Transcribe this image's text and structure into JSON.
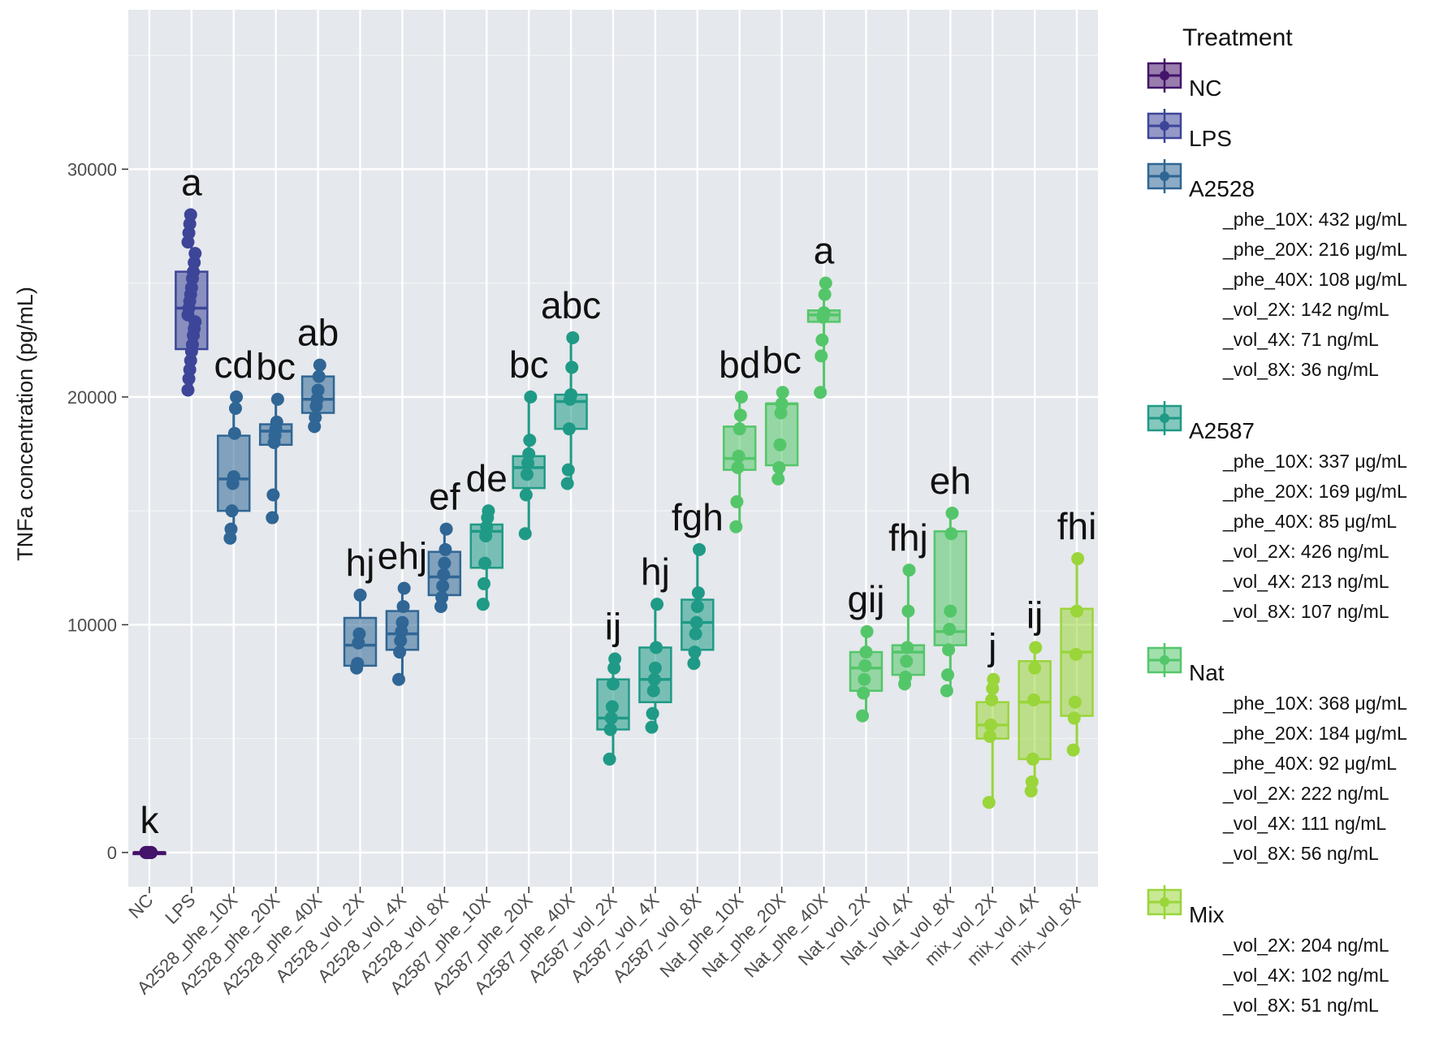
{
  "chart_data": {
    "type": "box",
    "ylabel": "TNFa concentration (pg/mL)",
    "xlabel": "",
    "ylim": [
      -1500,
      37000
    ],
    "yticks": [
      0,
      10000,
      20000,
      30000
    ],
    "categories": [
      "NC",
      "LPS",
      "A2528_phe_10X",
      "A2528_phe_20X",
      "A2528_phe_40X",
      "A2528_vol_2X",
      "A2528_vol_4X",
      "A2528_vol_8X",
      "A2587_phe_10X",
      "A2587_phe_20X",
      "A2587_phe_40X",
      "A2587_vol_2X",
      "A2587_vol_4X",
      "A2587_vol_8X",
      "Nat_phe_10X",
      "Nat_phe_20X",
      "Nat_phe_40X",
      "Nat_vol_2X",
      "Nat_vol_4X",
      "Nat_vol_8X",
      "mix_vol_2X",
      "mix_vol_4X",
      "mix_vol_8X"
    ],
    "boxes": [
      {
        "category": "NC",
        "group": "NC",
        "min": 0,
        "q1": 0,
        "median": 0,
        "q3": 0,
        "max": 0,
        "letter": "k",
        "points": [
          0,
          0,
          0,
          0,
          0,
          0,
          0
        ]
      },
      {
        "category": "LPS",
        "group": "LPS",
        "min": 20300,
        "q1": 22100,
        "median": 23900,
        "q3": 25500,
        "max": 28000,
        "letter": "a",
        "points": [
          20300,
          20800,
          21200,
          21600,
          22000,
          22300,
          22700,
          23000,
          23300,
          23600,
          23900,
          24200,
          24500,
          24800,
          25200,
          25500,
          25900,
          26300,
          26800,
          27200,
          27600,
          28000
        ]
      },
      {
        "category": "A2528_phe_10X",
        "group": "A2528",
        "min": 13800,
        "q1": 15000,
        "median": 16400,
        "q3": 18300,
        "max": 20000,
        "letter": "cd",
        "points": [
          13800,
          14200,
          15000,
          16200,
          16500,
          18400,
          19500,
          20000
        ]
      },
      {
        "category": "A2528_phe_20X",
        "group": "A2528",
        "min": 14700,
        "q1": 17900,
        "median": 18500,
        "q3": 18800,
        "max": 19900,
        "letter": "bc",
        "points": [
          14700,
          15700,
          18000,
          18300,
          18600,
          18900,
          19900
        ]
      },
      {
        "category": "A2528_phe_40X",
        "group": "A2528",
        "min": 18700,
        "q1": 19300,
        "median": 19900,
        "q3": 20900,
        "max": 21400,
        "letter": "ab",
        "points": [
          18700,
          19100,
          19600,
          19900,
          20300,
          20900,
          21400
        ]
      },
      {
        "category": "A2528_vol_2X",
        "group": "A2528",
        "min": 8100,
        "q1": 8200,
        "median": 9100,
        "q3": 10300,
        "max": 11300,
        "letter": "hj",
        "points": [
          8100,
          8300,
          9200,
          9600,
          11300
        ]
      },
      {
        "category": "A2528_vol_4X",
        "group": "A2528",
        "min": 7600,
        "q1": 8900,
        "median": 9600,
        "q3": 10600,
        "max": 11600,
        "letter": "ehj",
        "points": [
          7600,
          8800,
          9300,
          9700,
          10100,
          10800,
          11600
        ]
      },
      {
        "category": "A2528_vol_8X",
        "group": "A2528",
        "min": 10800,
        "q1": 11300,
        "median": 12100,
        "q3": 13200,
        "max": 14200,
        "letter": "ef",
        "points": [
          10800,
          11200,
          11700,
          12200,
          12700,
          13300,
          14200
        ]
      },
      {
        "category": "A2587_phe_10X",
        "group": "A2587",
        "min": 10900,
        "q1": 12500,
        "median": 14100,
        "q3": 14400,
        "max": 15000,
        "letter": "de",
        "points": [
          10900,
          11800,
          12700,
          13900,
          14300,
          14700,
          15000
        ]
      },
      {
        "category": "A2587_phe_20X",
        "group": "A2587",
        "min": 14000,
        "q1": 16000,
        "median": 16900,
        "q3": 17400,
        "max": 20000,
        "letter": "bc",
        "points": [
          14000,
          15700,
          16600,
          17100,
          17500,
          18100,
          20000
        ]
      },
      {
        "category": "A2587_phe_40X",
        "group": "A2587",
        "min": 16200,
        "q1": 18600,
        "median": 19800,
        "q3": 20100,
        "max": 22600,
        "letter": "abc",
        "points": [
          16200,
          16800,
          18600,
          19900,
          20100,
          21300,
          22600
        ]
      },
      {
        "category": "A2587_vol_2X",
        "group": "A2587",
        "min": 4100,
        "q1": 5400,
        "median": 5900,
        "q3": 7600,
        "max": 8500,
        "letter": "ij",
        "points": [
          4100,
          5400,
          5900,
          6400,
          7400,
          8100,
          8500
        ]
      },
      {
        "category": "A2587_vol_4X",
        "group": "A2587",
        "min": 5500,
        "q1": 6600,
        "median": 7600,
        "q3": 9000,
        "max": 10900,
        "letter": "hj",
        "points": [
          5500,
          6100,
          7100,
          7600,
          8100,
          9000,
          10900
        ]
      },
      {
        "category": "A2587_vol_8X",
        "group": "A2587",
        "min": 8300,
        "q1": 8900,
        "median": 10100,
        "q3": 11100,
        "max": 13300,
        "letter": "fgh",
        "points": [
          8300,
          8800,
          9600,
          10100,
          10800,
          11400,
          13300
        ]
      },
      {
        "category": "Nat_phe_10X",
        "group": "Nat",
        "min": 14300,
        "q1": 16800,
        "median": 17300,
        "q3": 18700,
        "max": 20000,
        "letter": "bd",
        "points": [
          14300,
          15400,
          16900,
          17400,
          18600,
          19200,
          20000
        ]
      },
      {
        "category": "Nat_phe_20X",
        "group": "Nat",
        "min": 16400,
        "q1": 17000,
        "median": 19700,
        "q3": 19700,
        "max": 20200,
        "letter": "bc",
        "points": [
          16400,
          16900,
          17900,
          19300,
          19700,
          20200
        ]
      },
      {
        "category": "Nat_phe_40X",
        "group": "Nat",
        "min": 20200,
        "q1": 23300,
        "median": 23600,
        "q3": 23800,
        "max": 25000,
        "letter": "a",
        "points": [
          20200,
          21800,
          22500,
          23500,
          23700,
          24500,
          25000
        ]
      },
      {
        "category": "Nat_vol_2X",
        "group": "Nat",
        "min": 6000,
        "q1": 7100,
        "median": 8100,
        "q3": 8800,
        "max": 9700,
        "letter": "gij",
        "points": [
          6000,
          7000,
          7600,
          8200,
          8800,
          9700
        ]
      },
      {
        "category": "Nat_vol_4X",
        "group": "Nat",
        "min": 7400,
        "q1": 7800,
        "median": 8800,
        "q3": 9100,
        "max": 12400,
        "letter": "fhj",
        "points": [
          7400,
          7700,
          8400,
          9000,
          10600,
          12400
        ]
      },
      {
        "category": "Nat_vol_8X",
        "group": "Nat",
        "min": 7100,
        "q1": 9100,
        "median": 9700,
        "q3": 14100,
        "max": 14900,
        "letter": "eh",
        "points": [
          7100,
          7800,
          8900,
          9800,
          10600,
          14000,
          14900
        ]
      },
      {
        "category": "mix_vol_2X",
        "group": "Mix",
        "min": 2200,
        "q1": 5000,
        "median": 5600,
        "q3": 6600,
        "max": 7600,
        "letter": "j",
        "points": [
          2200,
          5100,
          5600,
          6700,
          7200,
          7600
        ]
      },
      {
        "category": "mix_vol_4X",
        "group": "Mix",
        "min": 2700,
        "q1": 4100,
        "median": 6600,
        "q3": 8400,
        "max": 9000,
        "letter": "ij",
        "points": [
          2700,
          3100,
          4100,
          6700,
          8100,
          9000
        ]
      },
      {
        "category": "mix_vol_8X",
        "group": "Mix",
        "min": 4500,
        "q1": 6000,
        "median": 8800,
        "q3": 10700,
        "max": 12900,
        "letter": "fhi",
        "points": [
          4500,
          5900,
          6600,
          8700,
          10600,
          12900
        ]
      }
    ],
    "group_colors": {
      "NC": "#44136a",
      "LPS": "#3d4599",
      "A2528": "#2f6695",
      "A2587": "#1f9a86",
      "Nat": "#54c66a",
      "Mix": "#9ad53a"
    },
    "legend": {
      "title": "Treatment",
      "position": "right",
      "groups": [
        {
          "name": "NC",
          "key": "NC",
          "items": []
        },
        {
          "name": "LPS",
          "key": "LPS",
          "items": []
        },
        {
          "name": "A2528",
          "key": "A2528",
          "items": [
            "_phe_10X: 432 μg/mL",
            "_phe_20X: 216 μg/mL",
            "_phe_40X: 108 μg/mL",
            "_vol_2X: 142 ng/mL",
            "_vol_4X: 71 ng/mL",
            "_vol_8X: 36 ng/mL"
          ]
        },
        {
          "name": "A2587",
          "key": "A2587",
          "items": [
            "_phe_10X: 337 μg/mL",
            "_phe_20X: 169 μg/mL",
            "_phe_40X: 85 μg/mL",
            "_vol_2X: 426 ng/mL",
            "_vol_4X: 213 ng/mL",
            "_vol_8X: 107 ng/mL"
          ]
        },
        {
          "name": "Nat",
          "key": "Nat",
          "items": [
            "_phe_10X: 368 μg/mL",
            "_phe_20X: 184 μg/mL",
            "_phe_40X: 92 μg/mL",
            "_vol_2X: 222 ng/mL",
            "_vol_4X: 111 ng/mL",
            "_vol_8X: 56 ng/mL"
          ]
        },
        {
          "name": "Mix",
          "key": "Mix",
          "items": [
            "_vol_2X: 204 ng/mL",
            "_vol_4X: 102 ng/mL",
            "_vol_8X: 51 ng/mL"
          ]
        }
      ]
    },
    "grid": true,
    "panel_background": "#e5e8ec"
  }
}
